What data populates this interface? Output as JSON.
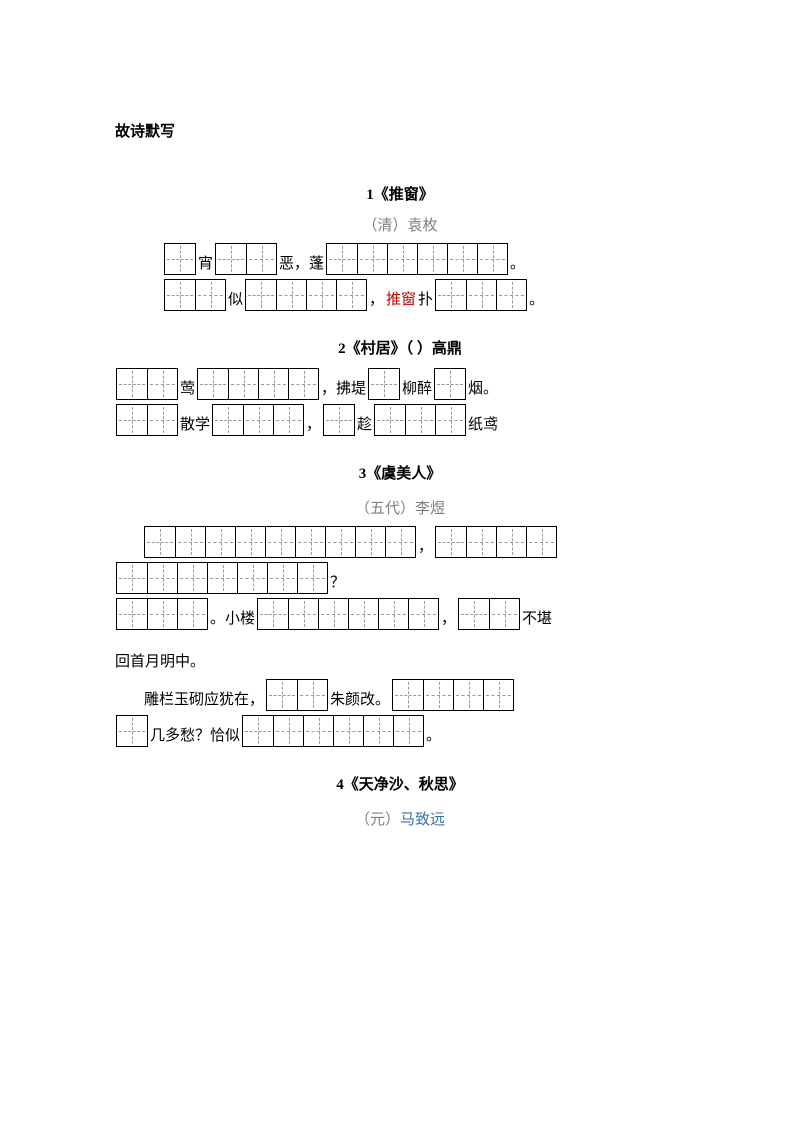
{
  "page_title": "故诗默写",
  "poems": {
    "p1": {
      "title": "1《推窗》",
      "author_prefix": "（清）",
      "author_name": "袁枚",
      "t1": "宵",
      "t2": "恶，蓬",
      "t3": "。",
      "t4": "似",
      "t5": "，",
      "t6": "推窗",
      "t7": "扑",
      "t8": "。"
    },
    "p2": {
      "title": "2《村居》（ ）高鼎",
      "t1": "莺",
      "t2": "，拂堤",
      "t3": "柳醉",
      "t4": "烟。",
      "t5": "散学",
      "t6": "，",
      "t7": "趁",
      "t8": "纸鸢"
    },
    "p3": {
      "title": "3《虞美人》",
      "author_prefix": "（五代）",
      "author_name": "李煜",
      "t1": "，",
      "t2": "？",
      "t3": "。小楼",
      "t4": "，",
      "t5": "不堪",
      "plain1": "回首月明中。",
      "t6": "雕栏玉砌应犹在，",
      "t7": "朱颜改。",
      "t8": "几多愁？恰似",
      "t9": "。"
    },
    "p4": {
      "title": "4《天净沙、秋思》",
      "author_prefix": "（元）",
      "author_name": "马致远"
    }
  }
}
